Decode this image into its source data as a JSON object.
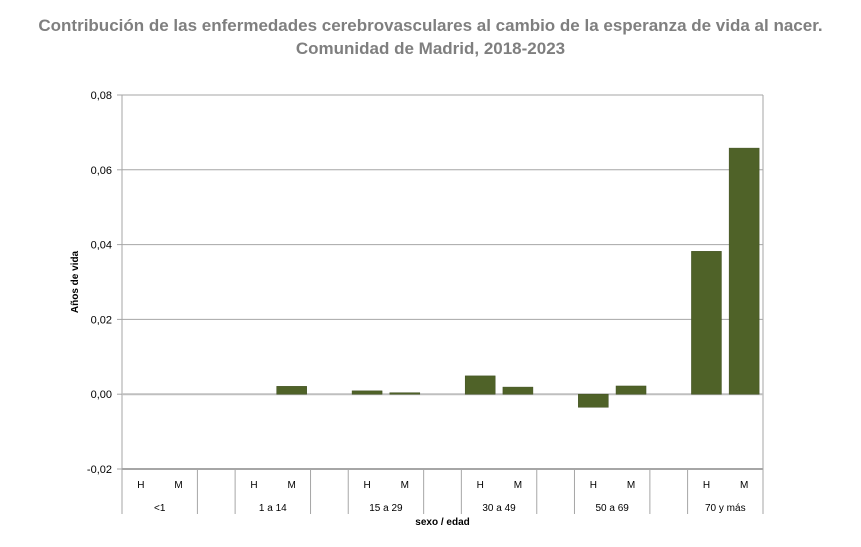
{
  "chart_data": {
    "type": "bar",
    "title": "Contribución de las enfermedades cerebrovasculares al cambio de la esperanza de vida al nacer. Comunidad de Madrid, 2018-2023",
    "xlabel": "sexo / edad",
    "ylabel": "Años de vida",
    "ylim": [
      -0.02,
      0.08
    ],
    "yticks": [
      "-0,02",
      "0,00",
      "0,02",
      "0,04",
      "0,06",
      "0,08"
    ],
    "grid": true,
    "groups": [
      "<1",
      "1 a 14",
      "15 a 29",
      "30 a 49",
      "50 a 69",
      "70 y más"
    ],
    "sexes": [
      "H",
      "M"
    ],
    "values": [
      [
        0,
        0
      ],
      [
        0,
        0.0021
      ],
      [
        0.0009,
        0.0004
      ],
      [
        0.0049,
        0.0019
      ],
      [
        -0.0035,
        0.0022
      ],
      [
        0.0382,
        0.0658
      ]
    ],
    "bar_color": "#4f6228"
  }
}
